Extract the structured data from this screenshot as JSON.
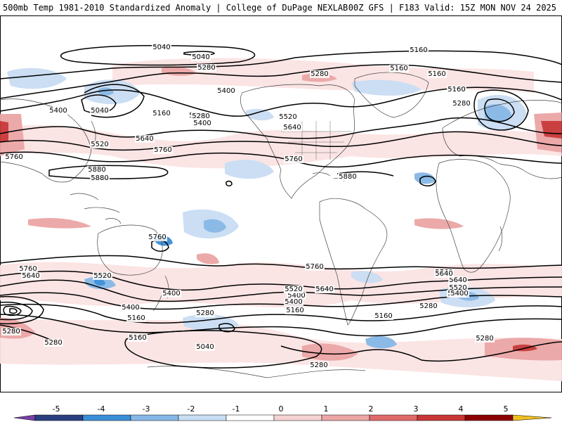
{
  "header": {
    "left": "500mb Temp 1981-2010 Standardized Anomaly | College of DuPage NEXLAB",
    "right": "00Z GFS | F183 Valid: 15Z MON NOV 24 2025"
  },
  "colors": {
    "cold_5": "#7b3fa8",
    "cold_4": "#2a3f7e",
    "cold_3": "#3a8ed8",
    "cold_2": "#86b7e6",
    "cold_1": "#c9ddf3",
    "neutral": "#ffffff",
    "warm_1": "#f6d3d3",
    "warm_2": "#eca5a5",
    "warm_3": "#e06a6a",
    "warm_4": "#c83636",
    "warm_5": "#8b0000",
    "max": "#f0c020",
    "contour": "#000000",
    "coast": "#444444"
  },
  "colorbar": {
    "labels": [
      "-5",
      "-4",
      "-3",
      "-2",
      "-1",
      "0",
      "1",
      "2",
      "3",
      "4",
      "5"
    ]
  },
  "contour_labels": [
    "5040",
    "5040",
    "5160",
    "5160",
    "5160",
    "5160",
    "5280",
    "5280",
    "5280",
    "5280",
    "5400",
    "5400",
    "5040",
    "5160",
    "5280",
    "5400",
    "5520",
    "5640",
    "5520",
    "5640",
    "5760",
    "5760",
    "5760",
    "5880",
    "5880",
    "5880",
    "5760",
    "5760",
    "5760",
    "5640",
    "5520",
    "5640",
    "5400",
    "5160",
    "5520",
    "5400",
    "5280",
    "5640",
    "5160",
    "5040",
    "5280",
    "5280",
    "5160",
    "5280",
    "5400",
    "5160",
    "5760",
    "5640",
    "5520",
    "5400",
    "5280",
    "5280",
    "5400",
    "5520",
    "5640"
  ]
}
